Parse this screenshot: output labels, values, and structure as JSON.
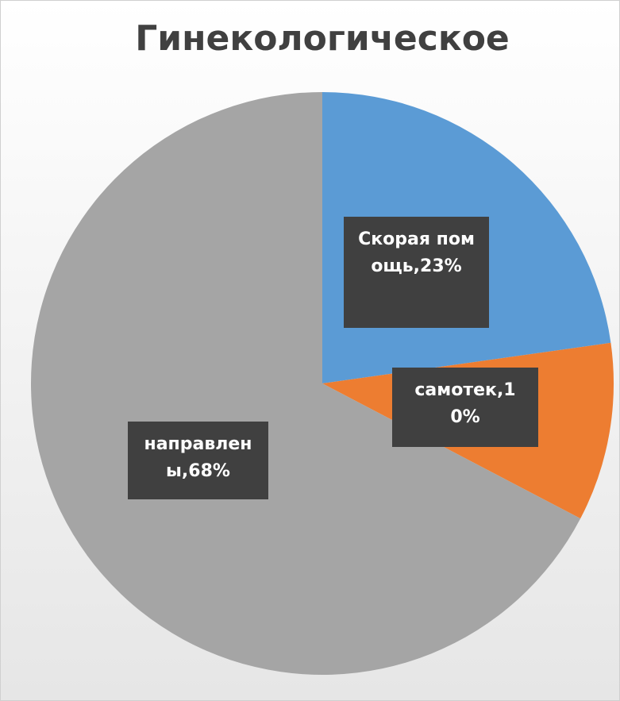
{
  "chart_data": {
    "type": "pie",
    "title": "Гинекологическое",
    "values": [
      23,
      10,
      68
    ],
    "value_labels": [
      "Скорая помощь,23%",
      "самотек,10%",
      "направлены,68%"
    ],
    "colors": [
      "#5b9bd5",
      "#ed7d31",
      "#a5a5a5"
    ]
  }
}
